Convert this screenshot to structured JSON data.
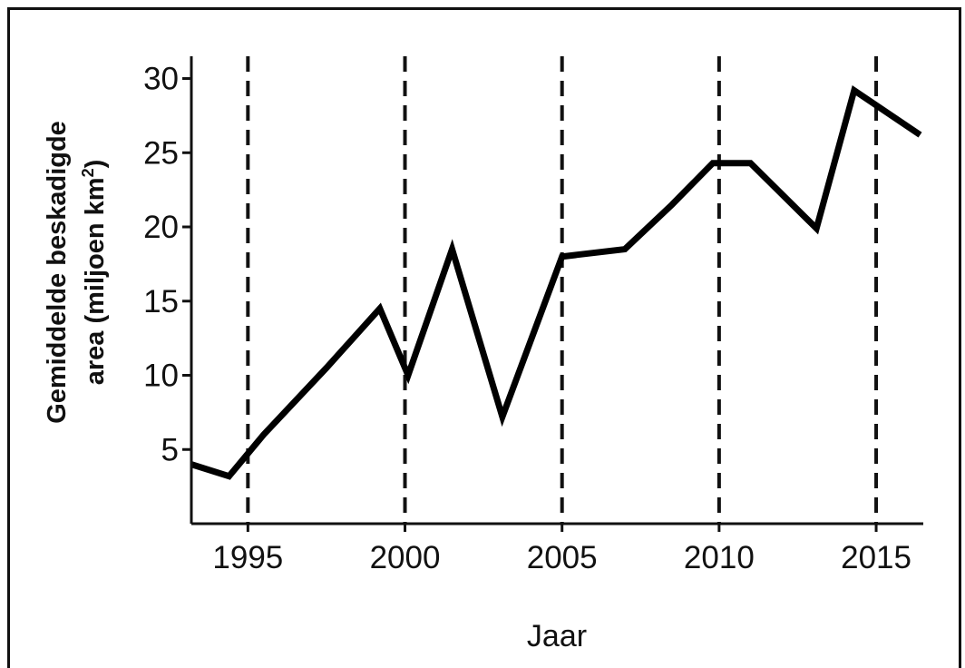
{
  "chart_data": {
    "type": "line",
    "xlabel": "Jaar",
    "ylabel_line1": "Gemiddelde beskadigde",
    "ylabel_line2": "area (miljoen km",
    "ylabel_sup": "2",
    "ylabel_close": ")",
    "xlim": [
      1993.2,
      2016.5
    ],
    "ylim": [
      0,
      31.5
    ],
    "x_ticks": [
      1995,
      2000,
      2005,
      2010,
      2015
    ],
    "y_ticks": [
      5,
      10,
      15,
      20,
      25,
      30
    ],
    "vertical_dashed_lines": [
      1995,
      2000,
      2005,
      2010,
      2015
    ],
    "grid": false,
    "series": [
      {
        "x": [
          1993.2,
          1994.4,
          1995.5,
          1997.5,
          1999.2,
          2000.1,
          2001.5,
          2003.1,
          2005.0,
          2007.0,
          2008.5,
          2009.8,
          2011.0,
          2013.1,
          2014.3,
          2016.4
        ],
        "y": [
          4.0,
          3.2,
          6.0,
          10.5,
          14.5,
          10.0,
          18.5,
          7.2,
          18.0,
          18.5,
          21.5,
          24.3,
          24.3,
          19.9,
          29.2,
          26.2
        ],
        "color": "#000000"
      }
    ]
  }
}
